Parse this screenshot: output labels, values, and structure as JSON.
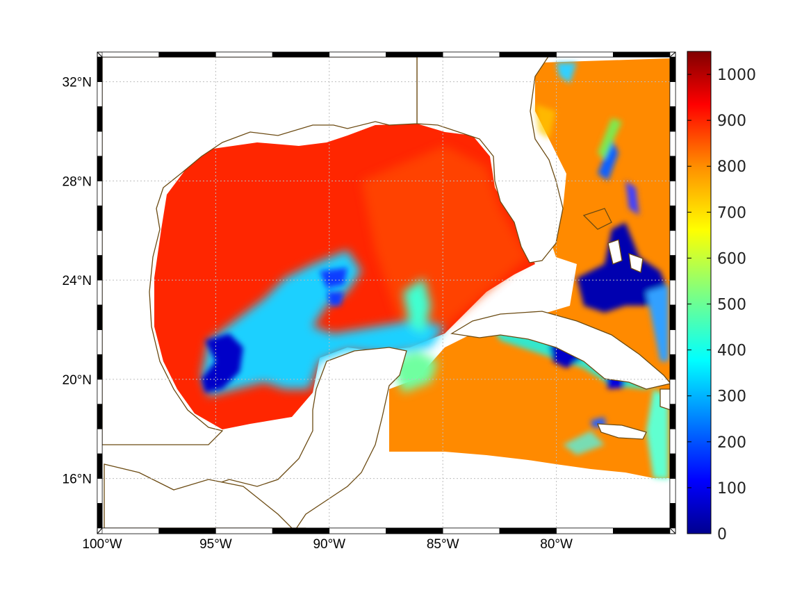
{
  "map": {
    "projection": "equidistant-cylindrical",
    "extent": {
      "lon_min": -100,
      "lon_max": -75,
      "lat_min": 14,
      "lat_max": 33
    },
    "lon_ticks": [
      {
        "value": -100,
        "label": "100°W"
      },
      {
        "value": -95,
        "label": "95°W"
      },
      {
        "value": -90,
        "label": "90°W"
      },
      {
        "value": -85,
        "label": "85°W"
      },
      {
        "value": -80,
        "label": "80°W"
      }
    ],
    "lat_ticks": [
      {
        "value": 16,
        "label": "16°N"
      },
      {
        "value": 20,
        "label": "20°N"
      },
      {
        "value": 24,
        "label": "24°N"
      },
      {
        "value": 28,
        "label": "28°N"
      },
      {
        "value": 32,
        "label": "32°N"
      }
    ],
    "grid": "dotted",
    "coastline_color": "#6b4a12",
    "frame_style": "alternating black/white"
  },
  "colorbar": {
    "colormap": "jet",
    "min": 0,
    "max": 1050,
    "ticks": [
      {
        "value": 0,
        "label": "0"
      },
      {
        "value": 100,
        "label": "100"
      },
      {
        "value": 200,
        "label": "200"
      },
      {
        "value": 300,
        "label": "300"
      },
      {
        "value": 400,
        "label": "400"
      },
      {
        "value": 500,
        "label": "500"
      },
      {
        "value": 600,
        "label": "600"
      },
      {
        "value": 700,
        "label": "700"
      },
      {
        "value": 800,
        "label": "800"
      },
      {
        "value": 900,
        "label": "900"
      },
      {
        "value": 1000,
        "label": "1000"
      }
    ],
    "colors": [
      "#00008f",
      "#0000ff",
      "#0080ff",
      "#00ffff",
      "#80ff80",
      "#ffff00",
      "#ff8000",
      "#ff0000",
      "#800000"
    ]
  }
}
